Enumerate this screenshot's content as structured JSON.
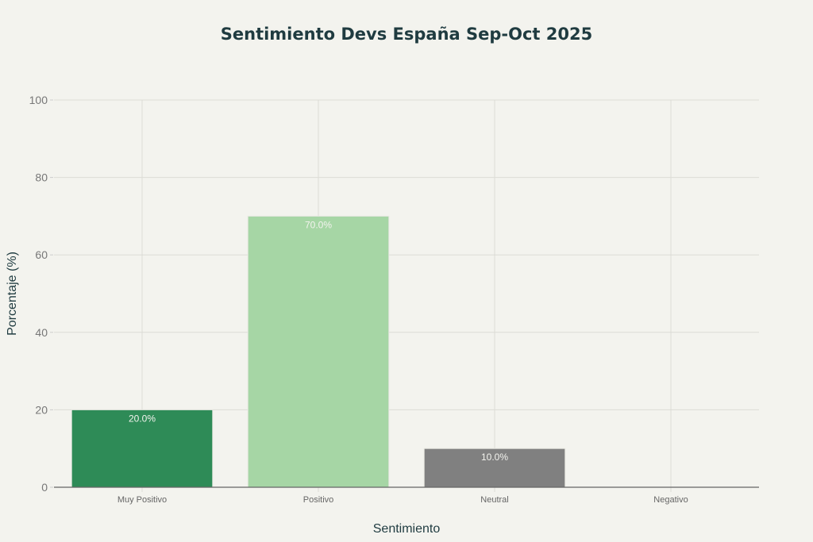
{
  "chart_data": {
    "type": "bar",
    "title": "Sentimiento Devs España Sep-Oct 2025",
    "xlabel": "Sentimiento",
    "ylabel": "Porcentaje (%)",
    "categories": [
      "Muy Positivo",
      "Positivo",
      "Neutral",
      "Negativo"
    ],
    "values": [
      20,
      70,
      10,
      0
    ],
    "data_labels": [
      "20.0%",
      "70.0%",
      "10.0%",
      ""
    ],
    "colors": [
      "#2e8b57",
      "#a6d6a5",
      "#808080",
      "#808080"
    ],
    "ylim": [
      0,
      100
    ],
    "yticks": [
      "0",
      "20",
      "40",
      "60",
      "80",
      "100"
    ],
    "grid": true,
    "legend": "none"
  }
}
